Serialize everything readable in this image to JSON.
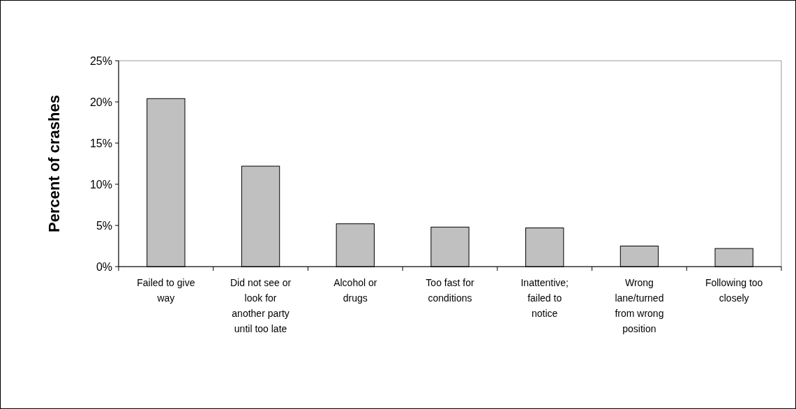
{
  "chart_data": {
    "type": "bar",
    "ylabel": "Percent of crashes",
    "categories": [
      "Failed to give way",
      "Did not see or look for another party until too late",
      "Alcohol or drugs",
      "Too fast for conditions",
      "Inattentive; failed to notice",
      "Wrong lane/turned from wrong position",
      "Following too closely"
    ],
    "values": [
      20.4,
      12.2,
      5.2,
      4.8,
      4.7,
      2.5,
      2.2
    ],
    "color": "#c0c0c0",
    "ylim": [
      0,
      25
    ],
    "yticks": [
      {
        "value": 0,
        "label": "0%"
      },
      {
        "value": 5,
        "label": "5%"
      },
      {
        "value": 10,
        "label": "10%"
      },
      {
        "value": 15,
        "label": "15%"
      },
      {
        "value": 20,
        "label": "20%"
      },
      {
        "value": 25,
        "label": "25%"
      }
    ],
    "grid": false
  }
}
